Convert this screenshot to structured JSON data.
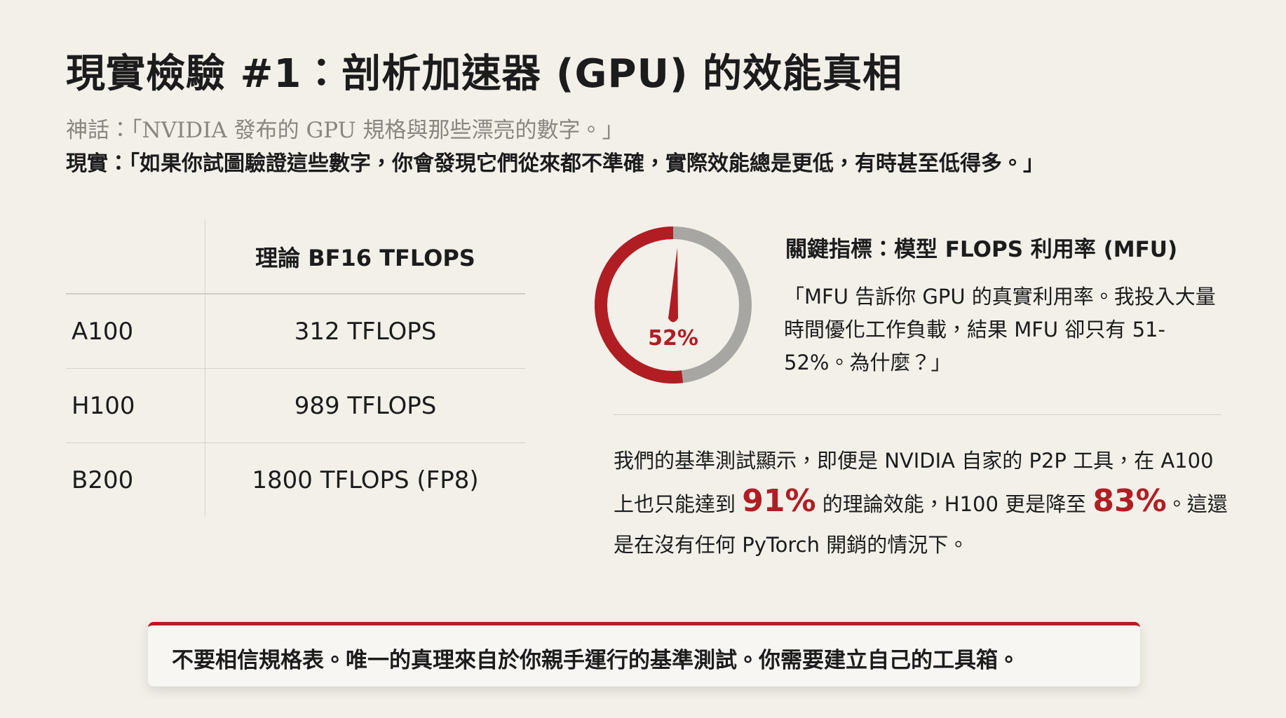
{
  "title": "現實檢驗 #1：剖析加速器 (GPU) 的效能真相",
  "myth": {
    "label": "神話：",
    "text": "「NVIDIA 發布的 GPU 規格與那些漂亮的數字。」"
  },
  "reality": {
    "label": "現實：",
    "text": "「如果你試圖驗證這些數字，你會發現它們從來都不準確，實際效能總是更低，有時甚至低得多。」"
  },
  "table": {
    "header": [
      "",
      "理論 BF16 TFLOPS"
    ],
    "rows": [
      [
        "A100",
        "312 TFLOPS"
      ],
      [
        "H100",
        "989 TFLOPS"
      ],
      [
        "B200",
        "1800 TFLOPS (FP8)"
      ]
    ]
  },
  "gauge": {
    "value": 52,
    "label": "52%"
  },
  "mfu": {
    "heading": "關鍵指標：模型 FLOPS 利用率 (MFU)",
    "quote": "「MFU 告訴你 GPU 的真實利用率。我投入大量時間優化工作負載，結果 MFU 卻只有 51-52%。為什麼？」"
  },
  "finding": [
    "我們的基準測試顯示，即便是 NVIDIA 自家的 P2P 工具，在 A100 上也只能達到 ",
    "91%",
    " 的理論效能，H100 更是降至 ",
    "83%",
    "。這還是在沒有任何 PyTorch 開銷的情況下。"
  ],
  "callout": "不要相信規格表。唯一的真理來自於你親手運行的基準測試。你需要建立自己的工具箱。"
}
